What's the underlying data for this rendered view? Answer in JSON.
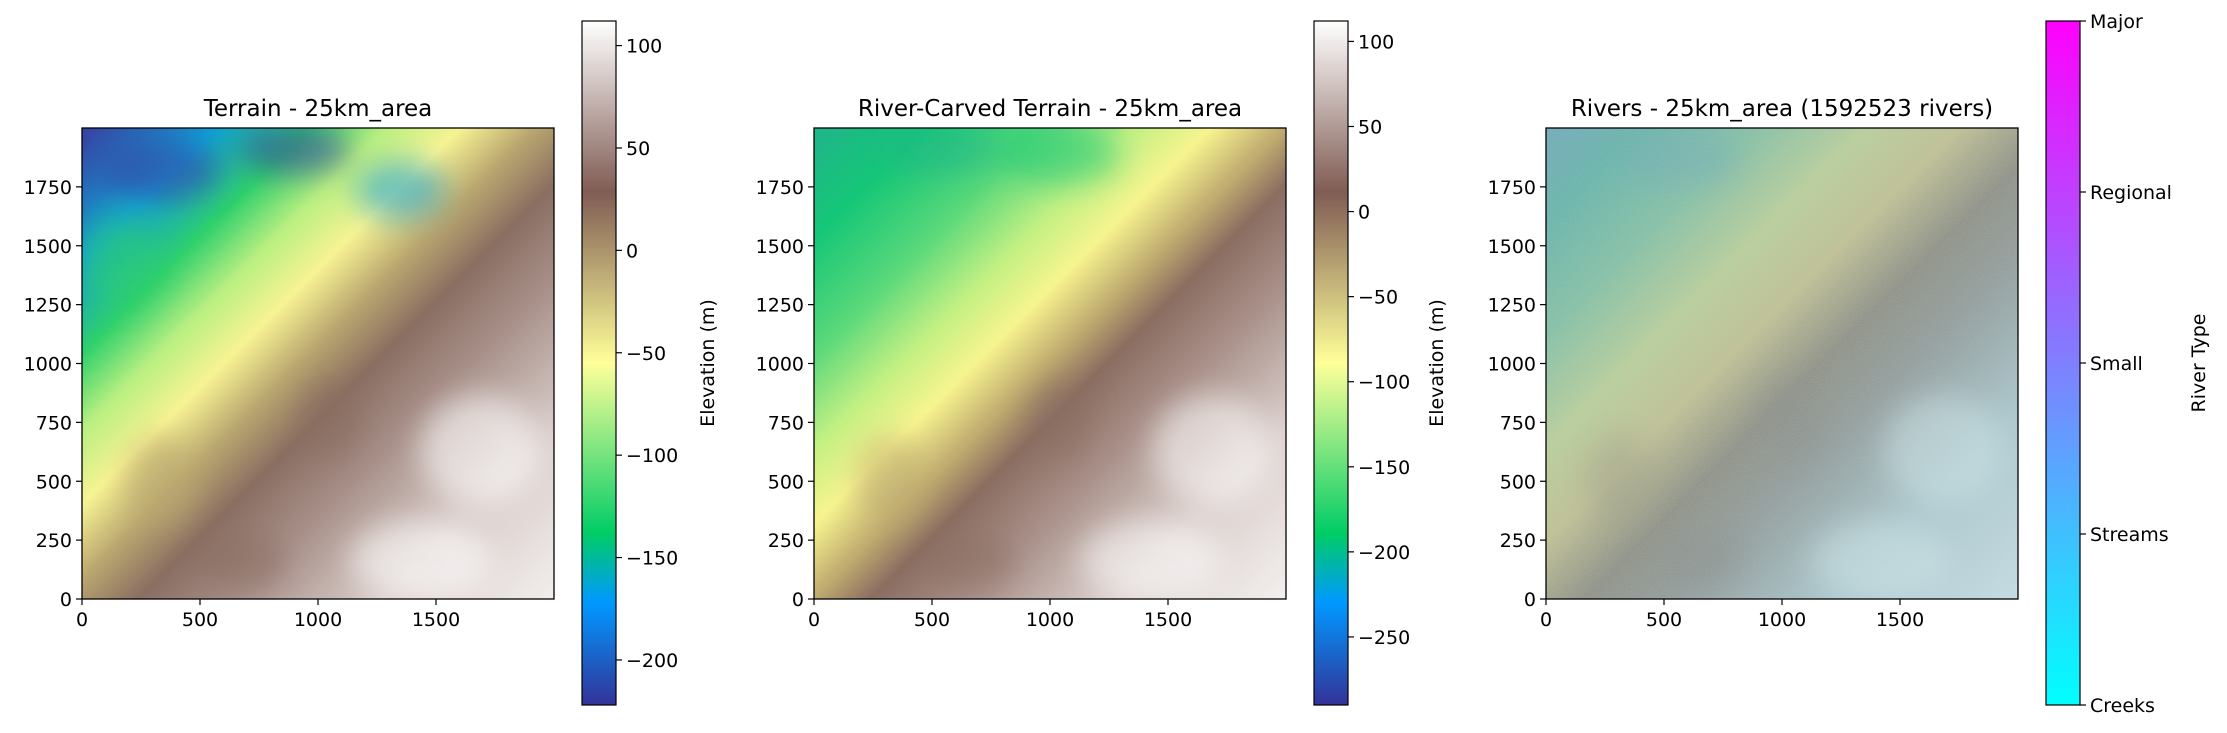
{
  "chart_data": [
    {
      "type": "heatmap",
      "title": "Terrain - 25km_area",
      "colormap": "terrain",
      "xlim": [
        0,
        2000
      ],
      "ylim": [
        0,
        2000
      ],
      "xticks": [
        0,
        500,
        1000,
        1500
      ],
      "yticks": [
        0,
        250,
        500,
        750,
        1000,
        1250,
        1500,
        1750
      ],
      "colorbar": {
        "label": "Elevation (m)",
        "range": [
          -222,
          112
        ],
        "ticks": [
          100,
          50,
          0,
          -50,
          -100,
          -150,
          -200
        ]
      }
    },
    {
      "type": "heatmap",
      "title": "River-Carved Terrain - 25km_area",
      "colormap": "terrain",
      "xlim": [
        0,
        2000
      ],
      "ylim": [
        0,
        2000
      ],
      "xticks": [
        0,
        500,
        1000,
        1500
      ],
      "yticks": [
        0,
        250,
        500,
        750,
        1000,
        1250,
        1500,
        1750
      ],
      "colorbar": {
        "label": "Elevation (m)",
        "range": [
          -290,
          112
        ],
        "ticks": [
          100,
          50,
          0,
          -50,
          -100,
          -150,
          -200,
          -250
        ]
      }
    },
    {
      "type": "heatmap",
      "title": "Rivers - 25km_area (1592523 rivers)",
      "colormap": "cool",
      "xlim": [
        0,
        2000
      ],
      "ylim": [
        0,
        2000
      ],
      "xticks": [
        0,
        500,
        1000,
        1500
      ],
      "yticks": [
        0,
        250,
        500,
        750,
        1000,
        1250,
        1500,
        1750
      ],
      "colorbar": {
        "label": "River Type",
        "categories": [
          "Creeks",
          "Streams",
          "Small",
          "Regional",
          "Major"
        ]
      }
    }
  ],
  "colors": {
    "terrain": [
      "#333399",
      "#0099ff",
      "#00cc66",
      "#ffff99",
      "#805c54",
      "#ffffff"
    ],
    "cool": [
      "#00ffff",
      "#ff00ff"
    ]
  }
}
